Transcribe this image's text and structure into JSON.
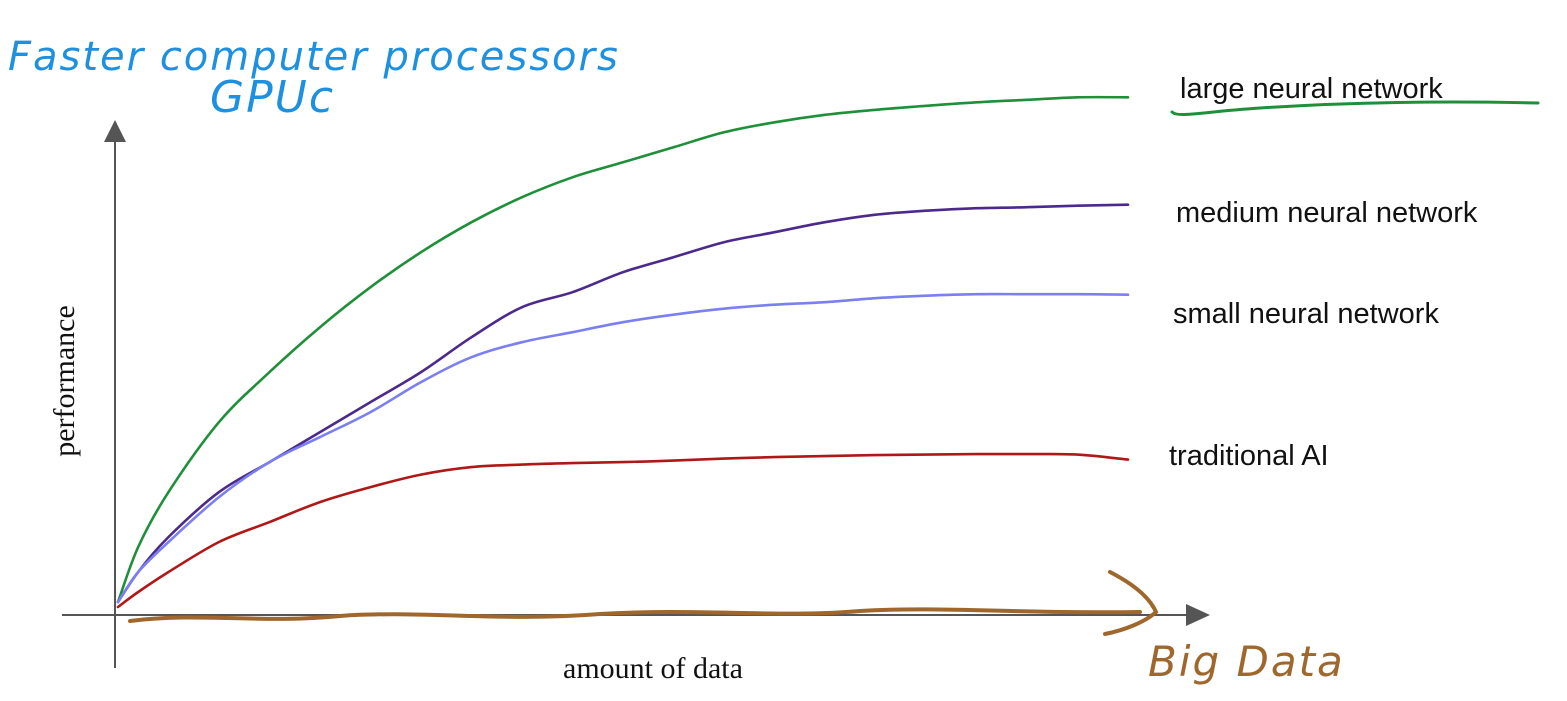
{
  "annotations": {
    "top_line1": "Faster computer processors",
    "top_line2": "GPUc",
    "bottom_right": "Big Data"
  },
  "colors": {
    "axis": "#555555",
    "annotation_blue": "#1e90e0",
    "annotation_brown": "#a0672c",
    "large": "#1f8f3a",
    "medium": "#4b2a8c",
    "small": "#7b7ff0",
    "traditional": "#b01818"
  },
  "chart_data": {
    "type": "line",
    "title": "",
    "xlabel": "amount of data",
    "ylabel": "performance",
    "xlim": [
      0,
      100
    ],
    "ylim": [
      0,
      100
    ],
    "grid": false,
    "legend": "right (labels at line ends)",
    "x": [
      0,
      2,
      5,
      10,
      15,
      20,
      25,
      30,
      35,
      40,
      45,
      50,
      55,
      60,
      65,
      70,
      75,
      80,
      85,
      90,
      95,
      100
    ],
    "series": [
      {
        "name": "large neural network",
        "color": "#1f8f3a",
        "values": [
          2,
          13,
          24,
          38,
          48,
          57,
          65,
          72,
          78,
          83,
          87,
          90,
          93,
          96,
          98,
          99.5,
          100.5,
          101.3,
          102,
          102.5,
          103,
          103
        ]
      },
      {
        "name": "medium neural network",
        "color": "#4b2a8c",
        "values": [
          2,
          8,
          15,
          24,
          30,
          36,
          42,
          48,
          55,
          61,
          64,
          68,
          71,
          74,
          76,
          78,
          79.5,
          80.3,
          80.8,
          81,
          81.3,
          81.5
        ]
      },
      {
        "name": "small neural network",
        "color": "#7b7ff0",
        "values": [
          2,
          8,
          14,
          23,
          30,
          35,
          40,
          46,
          51,
          54,
          56,
          58,
          59.5,
          60.7,
          61.5,
          62,
          62.8,
          63.3,
          63.6,
          63.6,
          63.6,
          63.5
        ]
      },
      {
        "name": "traditional AI",
        "color": "#b01818",
        "values": [
          1,
          4,
          8,
          14,
          18,
          22,
          25,
          27.5,
          29,
          29.5,
          29.8,
          30,
          30.3,
          30.7,
          31,
          31.2,
          31.4,
          31.5,
          31.6,
          31.6,
          31.5,
          30.5
        ]
      }
    ]
  }
}
